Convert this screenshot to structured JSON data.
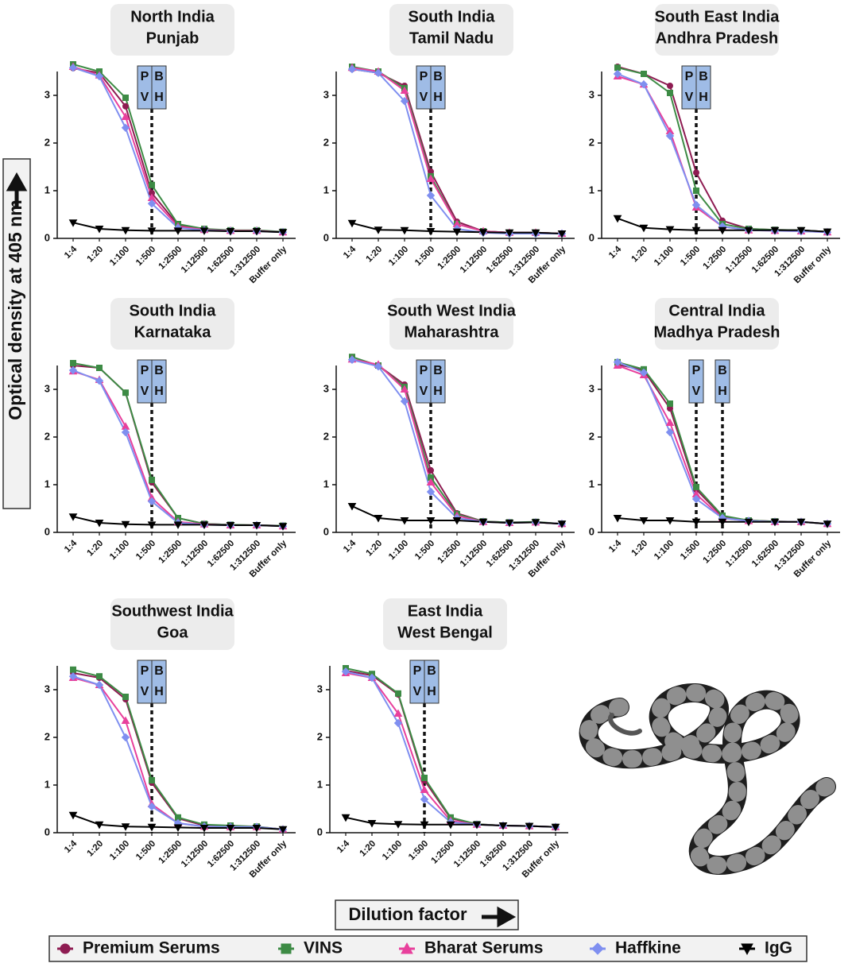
{
  "y_axis_label": "Optical density at 405 nm",
  "x_axis_label": "Dilution factor",
  "chart_data": [
    {
      "type": "line",
      "title": "North India",
      "subtitle": "Punjab",
      "categories": [
        "1:4",
        "1:20",
        "1:100",
        "1:500",
        "1:2500",
        "1:12500",
        "1:62500",
        "1:312500",
        "Buffer only"
      ],
      "ylim": [
        0,
        3.5
      ],
      "yticks": [
        0,
        1,
        2,
        3
      ],
      "annotations": [
        {
          "lines": [
            "P",
            "V"
          ],
          "category": "1:500"
        },
        {
          "lines": [
            "B",
            "H"
          ],
          "category": "1:500"
        }
      ],
      "series": [
        {
          "name": "Premium Serums",
          "color": "#8e1c52",
          "marker": "circle",
          "values": [
            3.57,
            3.47,
            2.77,
            0.95,
            0.28,
            0.18,
            0.16,
            0.16,
            0.13
          ]
        },
        {
          "name": "VINS",
          "color": "#3d8b45",
          "marker": "square",
          "values": [
            3.65,
            3.5,
            2.95,
            1.12,
            0.3,
            0.2,
            0.17,
            0.17,
            0.14
          ]
        },
        {
          "name": "Bharat Serums",
          "color": "#e8409c",
          "marker": "triangle",
          "values": [
            3.6,
            3.42,
            2.55,
            0.85,
            0.25,
            0.18,
            0.16,
            0.16,
            0.13
          ]
        },
        {
          "name": "Haffkine",
          "color": "#7f8ff0",
          "marker": "diamond",
          "values": [
            3.58,
            3.4,
            2.32,
            0.73,
            0.22,
            0.17,
            0.15,
            0.15,
            0.13
          ]
        },
        {
          "name": "IgG",
          "color": "#000000",
          "marker": "invtriangle",
          "values": [
            0.33,
            0.2,
            0.17,
            0.16,
            0.16,
            0.16,
            0.15,
            0.15,
            0.13
          ]
        }
      ]
    },
    {
      "type": "line",
      "title": "South India",
      "subtitle": "Tamil Nadu",
      "categories": [
        "1:4",
        "1:20",
        "1:100",
        "1:500",
        "1:2500",
        "1:12500",
        "1:62500",
        "1:312500",
        "Buffer only"
      ],
      "ylim": [
        0,
        3.5
      ],
      "yticks": [
        0,
        1,
        2,
        3
      ],
      "annotations": [
        {
          "lines": [
            "P",
            "V"
          ],
          "category": "1:500"
        },
        {
          "lines": [
            "B",
            "H"
          ],
          "category": "1:500"
        }
      ],
      "series": [
        {
          "name": "Premium Serums",
          "color": "#8e1c52",
          "marker": "circle",
          "values": [
            3.55,
            3.47,
            3.2,
            1.4,
            0.35,
            0.15,
            0.12,
            0.12,
            0.1
          ]
        },
        {
          "name": "VINS",
          "color": "#3d8b45",
          "marker": "square",
          "values": [
            3.6,
            3.5,
            3.15,
            1.3,
            0.3,
            0.15,
            0.12,
            0.12,
            0.1
          ]
        },
        {
          "name": "Bharat Serums",
          "color": "#e8409c",
          "marker": "triangle",
          "values": [
            3.58,
            3.5,
            3.1,
            1.25,
            0.3,
            0.15,
            0.12,
            0.12,
            0.1
          ]
        },
        {
          "name": "Haffkine",
          "color": "#7f8ff0",
          "marker": "diamond",
          "values": [
            3.55,
            3.47,
            2.88,
            0.9,
            0.2,
            0.12,
            0.1,
            0.1,
            0.1
          ]
        },
        {
          "name": "IgG",
          "color": "#000000",
          "marker": "invtriangle",
          "values": [
            0.32,
            0.18,
            0.17,
            0.15,
            0.14,
            0.13,
            0.12,
            0.12,
            0.1
          ]
        }
      ]
    },
    {
      "type": "line",
      "title": "South East India",
      "subtitle": "Andhra Pradesh",
      "categories": [
        "1:4",
        "1:20",
        "1:100",
        "1:500",
        "1:2500",
        "1:12500",
        "1:62500",
        "1:312500",
        "Buffer only"
      ],
      "ylim": [
        0,
        3.5
      ],
      "yticks": [
        0,
        1,
        2,
        3
      ],
      "annotations": [
        {
          "lines": [
            "P",
            "V"
          ],
          "category": "1:500"
        },
        {
          "lines": [
            "B",
            "H"
          ],
          "category": "1:500"
        }
      ],
      "series": [
        {
          "name": "Premium Serums",
          "color": "#8e1c52",
          "marker": "circle",
          "values": [
            3.6,
            3.45,
            3.2,
            1.38,
            0.37,
            0.2,
            0.18,
            0.17,
            0.14
          ]
        },
        {
          "name": "VINS",
          "color": "#3d8b45",
          "marker": "square",
          "values": [
            3.58,
            3.45,
            3.05,
            1.0,
            0.3,
            0.2,
            0.18,
            0.17,
            0.14
          ]
        },
        {
          "name": "Bharat Serums",
          "color": "#e8409c",
          "marker": "triangle",
          "values": [
            3.4,
            3.23,
            2.25,
            0.65,
            0.25,
            0.17,
            0.16,
            0.15,
            0.13
          ]
        },
        {
          "name": "Haffkine",
          "color": "#7f8ff0",
          "marker": "diamond",
          "values": [
            3.45,
            3.23,
            2.15,
            0.7,
            0.25,
            0.17,
            0.16,
            0.15,
            0.13
          ]
        },
        {
          "name": "IgG",
          "color": "#000000",
          "marker": "invtriangle",
          "values": [
            0.42,
            0.22,
            0.19,
            0.17,
            0.17,
            0.17,
            0.17,
            0.17,
            0.14
          ]
        }
      ]
    },
    {
      "type": "line",
      "title": "South India",
      "subtitle": "Karnataka",
      "categories": [
        "1:4",
        "1:20",
        "1:100",
        "1:500",
        "1:2500",
        "1:12500",
        "1:62500",
        "1:312500",
        "Buffer only"
      ],
      "ylim": [
        0,
        3.5
      ],
      "yticks": [
        0,
        1,
        2,
        3
      ],
      "annotations": [
        {
          "lines": [
            "P",
            "V"
          ],
          "category": "1:500"
        },
        {
          "lines": [
            "B",
            "H"
          ],
          "category": "1:500"
        }
      ],
      "series": [
        {
          "name": "Premium Serums",
          "color": "#8e1c52",
          "marker": "circle",
          "values": [
            3.5,
            3.45,
            2.93,
            1.05,
            0.3,
            0.18,
            0.16,
            0.15,
            0.14
          ]
        },
        {
          "name": "VINS",
          "color": "#3d8b45",
          "marker": "square",
          "values": [
            3.55,
            3.45,
            2.93,
            1.1,
            0.3,
            0.18,
            0.16,
            0.15,
            0.14
          ]
        },
        {
          "name": "Bharat Serums",
          "color": "#e8409c",
          "marker": "triangle",
          "values": [
            3.38,
            3.2,
            2.22,
            0.72,
            0.22,
            0.17,
            0.15,
            0.15,
            0.13
          ]
        },
        {
          "name": "Haffkine",
          "color": "#7f8ff0",
          "marker": "diamond",
          "values": [
            3.4,
            3.18,
            2.1,
            0.65,
            0.2,
            0.16,
            0.15,
            0.15,
            0.13
          ]
        },
        {
          "name": "IgG",
          "color": "#000000",
          "marker": "invtriangle",
          "values": [
            0.33,
            0.2,
            0.17,
            0.16,
            0.16,
            0.16,
            0.15,
            0.15,
            0.13
          ]
        }
      ]
    },
    {
      "type": "line",
      "title": "South West India",
      "subtitle": "Maharashtra",
      "categories": [
        "1:4",
        "1:20",
        "1:100",
        "1:500",
        "1:2500",
        "1:12500",
        "1:62500",
        "1:312500",
        "Buffer only"
      ],
      "ylim": [
        0,
        3.5
      ],
      "yticks": [
        0,
        1,
        2,
        3
      ],
      "annotations": [
        {
          "lines": [
            "P",
            "V"
          ],
          "category": "1:500"
        },
        {
          "lines": [
            "B",
            "H"
          ],
          "category": "1:500"
        }
      ],
      "series": [
        {
          "name": "Premium Serums",
          "color": "#8e1c52",
          "marker": "circle",
          "values": [
            3.62,
            3.5,
            3.1,
            1.3,
            0.4,
            0.23,
            0.21,
            0.21,
            0.18
          ]
        },
        {
          "name": "VINS",
          "color": "#3d8b45",
          "marker": "square",
          "values": [
            3.68,
            3.5,
            3.05,
            1.15,
            0.38,
            0.23,
            0.21,
            0.22,
            0.18
          ]
        },
        {
          "name": "Bharat Serums",
          "color": "#e8409c",
          "marker": "triangle",
          "values": [
            3.63,
            3.52,
            3.0,
            1.05,
            0.35,
            0.22,
            0.2,
            0.21,
            0.18
          ]
        },
        {
          "name": "Haffkine",
          "color": "#7f8ff0",
          "marker": "diamond",
          "values": [
            3.62,
            3.48,
            2.75,
            0.85,
            0.3,
            0.22,
            0.2,
            0.21,
            0.18
          ]
        },
        {
          "name": "IgG",
          "color": "#000000",
          "marker": "invtriangle",
          "values": [
            0.55,
            0.3,
            0.25,
            0.25,
            0.25,
            0.22,
            0.2,
            0.21,
            0.18
          ]
        }
      ]
    },
    {
      "type": "line",
      "title": "Central India",
      "subtitle": "Madhya Pradesh",
      "categories": [
        "1:4",
        "1:20",
        "1:100",
        "1:500",
        "1:2500",
        "1:12500",
        "1:62500",
        "1:312500",
        "Buffer only"
      ],
      "ylim": [
        0,
        3.5
      ],
      "yticks": [
        0,
        1,
        2,
        3
      ],
      "annotations": [
        {
          "lines": [
            "P",
            "V"
          ],
          "category": "1:500"
        },
        {
          "lines": [
            "B",
            "H"
          ],
          "category": "1:2500"
        }
      ],
      "series": [
        {
          "name": "Premium Serums",
          "color": "#8e1c52",
          "marker": "circle",
          "values": [
            3.52,
            3.4,
            2.6,
            0.9,
            0.33,
            0.25,
            0.23,
            0.22,
            0.18
          ]
        },
        {
          "name": "VINS",
          "color": "#3d8b45",
          "marker": "square",
          "values": [
            3.57,
            3.42,
            2.7,
            0.95,
            0.35,
            0.25,
            0.23,
            0.22,
            0.18
          ]
        },
        {
          "name": "Bharat Serums",
          "color": "#e8409c",
          "marker": "triangle",
          "values": [
            3.5,
            3.3,
            2.3,
            0.8,
            0.3,
            0.24,
            0.22,
            0.22,
            0.18
          ]
        },
        {
          "name": "Haffkine",
          "color": "#7f8ff0",
          "marker": "diamond",
          "values": [
            3.57,
            3.35,
            2.1,
            0.7,
            0.3,
            0.24,
            0.22,
            0.22,
            0.18
          ]
        },
        {
          "name": "IgG",
          "color": "#000000",
          "marker": "invtriangle",
          "values": [
            0.3,
            0.25,
            0.25,
            0.22,
            0.22,
            0.22,
            0.22,
            0.22,
            0.18
          ]
        }
      ]
    },
    {
      "type": "line",
      "title": "Southwest India",
      "subtitle": "Goa",
      "categories": [
        "1:4",
        "1:20",
        "1:100",
        "1:500",
        "1:2500",
        "1:12500",
        "1:62500",
        "1:312500",
        "Buffer only"
      ],
      "ylim": [
        0,
        3.5
      ],
      "yticks": [
        0,
        1,
        2,
        3
      ],
      "annotations": [
        {
          "lines": [
            "P",
            "V"
          ],
          "category": "1:500"
        },
        {
          "lines": [
            "B",
            "H"
          ],
          "category": "1:500"
        }
      ],
      "series": [
        {
          "name": "Premium Serums",
          "color": "#8e1c52",
          "marker": "circle",
          "values": [
            3.35,
            3.25,
            2.8,
            1.05,
            0.3,
            0.15,
            0.13,
            0.12,
            0.07
          ]
        },
        {
          "name": "VINS",
          "color": "#3d8b45",
          "marker": "square",
          "values": [
            3.42,
            3.28,
            2.85,
            1.1,
            0.32,
            0.17,
            0.15,
            0.13,
            0.07
          ]
        },
        {
          "name": "Bharat Serums",
          "color": "#e8409c",
          "marker": "triangle",
          "values": [
            3.25,
            3.1,
            2.35,
            0.6,
            0.2,
            0.13,
            0.12,
            0.12,
            0.07
          ]
        },
        {
          "name": "Haffkine",
          "color": "#7f8ff0",
          "marker": "diamond",
          "values": [
            3.28,
            3.1,
            2.0,
            0.55,
            0.2,
            0.13,
            0.12,
            0.12,
            0.07
          ]
        },
        {
          "name": "IgG",
          "color": "#000000",
          "marker": "invtriangle",
          "values": [
            0.37,
            0.17,
            0.13,
            0.12,
            0.11,
            0.1,
            0.1,
            0.1,
            0.07
          ]
        }
      ]
    },
    {
      "type": "line",
      "title": "East India",
      "subtitle": "West Bengal",
      "categories": [
        "1:4",
        "1:20",
        "1:100",
        "1:500",
        "1:2500",
        "1:12500",
        "1:62500",
        "1:312500",
        "Buffer only"
      ],
      "ylim": [
        0,
        3.5
      ],
      "yticks": [
        0,
        1,
        2,
        3
      ],
      "annotations": [
        {
          "lines": [
            "P",
            "V"
          ],
          "category": "1:500"
        },
        {
          "lines": [
            "B",
            "H"
          ],
          "category": "1:500"
        }
      ],
      "series": [
        {
          "name": "Premium Serums",
          "color": "#8e1c52",
          "marker": "circle",
          "values": [
            3.4,
            3.3,
            2.9,
            1.1,
            0.3,
            0.18,
            0.15,
            0.14,
            0.12
          ]
        },
        {
          "name": "VINS",
          "color": "#3d8b45",
          "marker": "square",
          "values": [
            3.45,
            3.33,
            2.92,
            1.15,
            0.32,
            0.18,
            0.15,
            0.14,
            0.12
          ]
        },
        {
          "name": "Bharat Serums",
          "color": "#e8409c",
          "marker": "triangle",
          "values": [
            3.35,
            3.25,
            2.5,
            0.9,
            0.25,
            0.17,
            0.15,
            0.14,
            0.12
          ]
        },
        {
          "name": "Haffkine",
          "color": "#7f8ff0",
          "marker": "diamond",
          "values": [
            3.38,
            3.25,
            2.3,
            0.7,
            0.22,
            0.17,
            0.15,
            0.14,
            0.12
          ]
        },
        {
          "name": "IgG",
          "color": "#000000",
          "marker": "invtriangle",
          "values": [
            0.32,
            0.2,
            0.18,
            0.17,
            0.17,
            0.17,
            0.15,
            0.14,
            0.12
          ]
        }
      ]
    }
  ]
}
